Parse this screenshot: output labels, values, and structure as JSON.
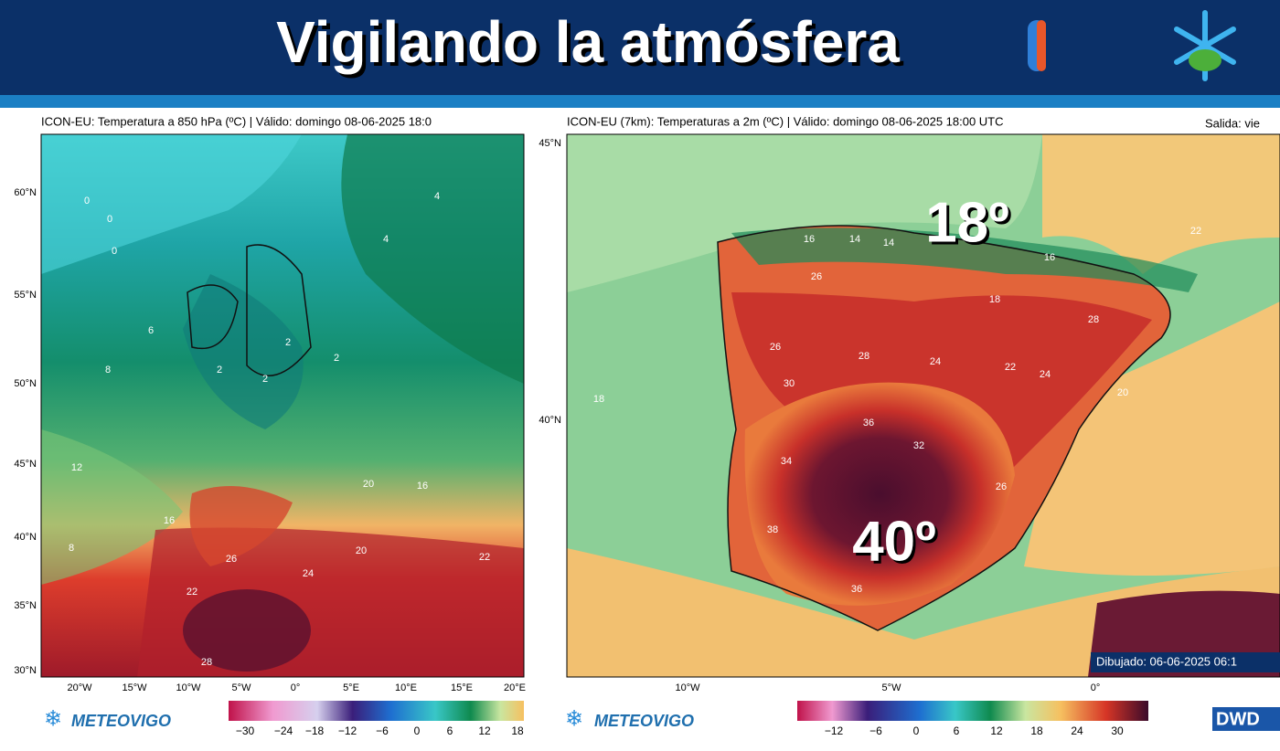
{
  "header": {
    "title": "Vigilando la atmósfera"
  },
  "left_map": {
    "title": "ICON-EU: Temperatura a 850 hPa (ºC) | Válido: domingo 08-06-2025 18:0",
    "lat_labels": [
      "60°N",
      "55°N",
      "50°N",
      "45°N",
      "40°N",
      "35°N",
      "30°N"
    ],
    "lon_labels": [
      "20°W",
      "15°W",
      "10°W",
      "5°W",
      "0°",
      "5°E",
      "10°E",
      "15°E",
      "20°E"
    ],
    "colorbar_ticks": [
      "−30",
      "−24",
      "−18",
      "−12",
      "−6",
      "0",
      "6",
      "12",
      "18"
    ],
    "contour_labels": [
      "0",
      "0",
      "0",
      "4",
      "4",
      "6",
      "8",
      "8",
      "12",
      "16",
      "2",
      "2",
      "2",
      "2",
      "20",
      "16",
      "20",
      "22",
      "24",
      "26",
      "22",
      "28"
    ],
    "logo": "METEOVIGO"
  },
  "right_map": {
    "title": "ICON-EU (7km): Temperaturas a 2m (ºC) | Válido: domingo 08-06-2025 18:00 UTC",
    "run": "Salida: vie",
    "lat_labels": [
      "45°N",
      "40°N"
    ],
    "lon_labels": [
      "10°W",
      "5°W",
      "0°"
    ],
    "colorbar_ticks": [
      "−12",
      "−6",
      "0",
      "6",
      "12",
      "18",
      "24",
      "30"
    ],
    "annotations": [
      "18º",
      "40º"
    ],
    "contour_labels": [
      "16",
      "14",
      "14",
      "16",
      "18",
      "26",
      "24",
      "26",
      "28",
      "28",
      "30",
      "36",
      "34",
      "38",
      "32",
      "22",
      "24",
      "20",
      "18",
      "22",
      "26",
      "36"
    ],
    "drawn": "Dibujado: 06-06-2025 06:1",
    "logo": "METEOVIGO",
    "source": "DWD"
  }
}
